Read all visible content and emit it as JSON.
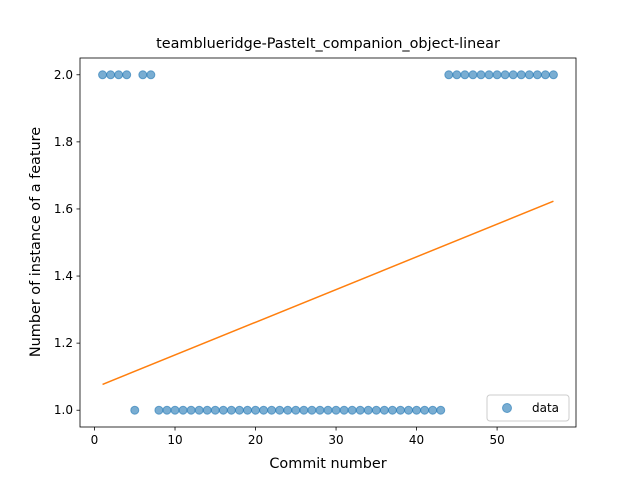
{
  "chart_data": {
    "type": "scatter",
    "title": "teamblueridge-PasteIt_companion_object-linear",
    "xlabel": "Commit number",
    "ylabel": "Number of instance of a feature",
    "xlim": [
      -1.8,
      59.8
    ],
    "ylim": [
      0.95,
      2.05
    ],
    "xticks": [
      0,
      10,
      20,
      30,
      40,
      50
    ],
    "yticks": [
      1.0,
      1.2,
      1.4,
      1.6,
      1.8,
      2.0
    ],
    "xtick_labels": [
      "0",
      "10",
      "20",
      "30",
      "40",
      "50"
    ],
    "ytick_labels": [
      "1.0",
      "1.2",
      "1.4",
      "1.6",
      "1.8",
      "2.0"
    ],
    "grid": false,
    "legend_position": "lower-right",
    "series": [
      {
        "name": "data",
        "kind": "scatter",
        "color": "#1f77b4",
        "x": [
          1,
          2,
          3,
          4,
          5,
          6,
          7,
          8,
          9,
          10,
          11,
          12,
          13,
          14,
          15,
          16,
          17,
          18,
          19,
          20,
          21,
          22,
          23,
          24,
          25,
          26,
          27,
          28,
          29,
          30,
          31,
          32,
          33,
          34,
          35,
          36,
          37,
          38,
          39,
          40,
          41,
          42,
          43,
          44,
          45,
          46,
          47,
          48,
          49,
          50,
          51,
          52,
          53,
          54,
          55,
          56,
          57
        ],
        "y": [
          2,
          2,
          2,
          2,
          1,
          2,
          2,
          1,
          1,
          1,
          1,
          1,
          1,
          1,
          1,
          1,
          1,
          1,
          1,
          1,
          1,
          1,
          1,
          1,
          1,
          1,
          1,
          1,
          1,
          1,
          1,
          1,
          1,
          1,
          1,
          1,
          1,
          1,
          1,
          1,
          1,
          1,
          1,
          2,
          2,
          2,
          2,
          2,
          2,
          2,
          2,
          2,
          2,
          2,
          2,
          2,
          2
        ]
      },
      {
        "kind": "line",
        "color": "#ff7f0e",
        "x": [
          1,
          57
        ],
        "y": [
          1.077,
          1.623
        ]
      }
    ]
  }
}
